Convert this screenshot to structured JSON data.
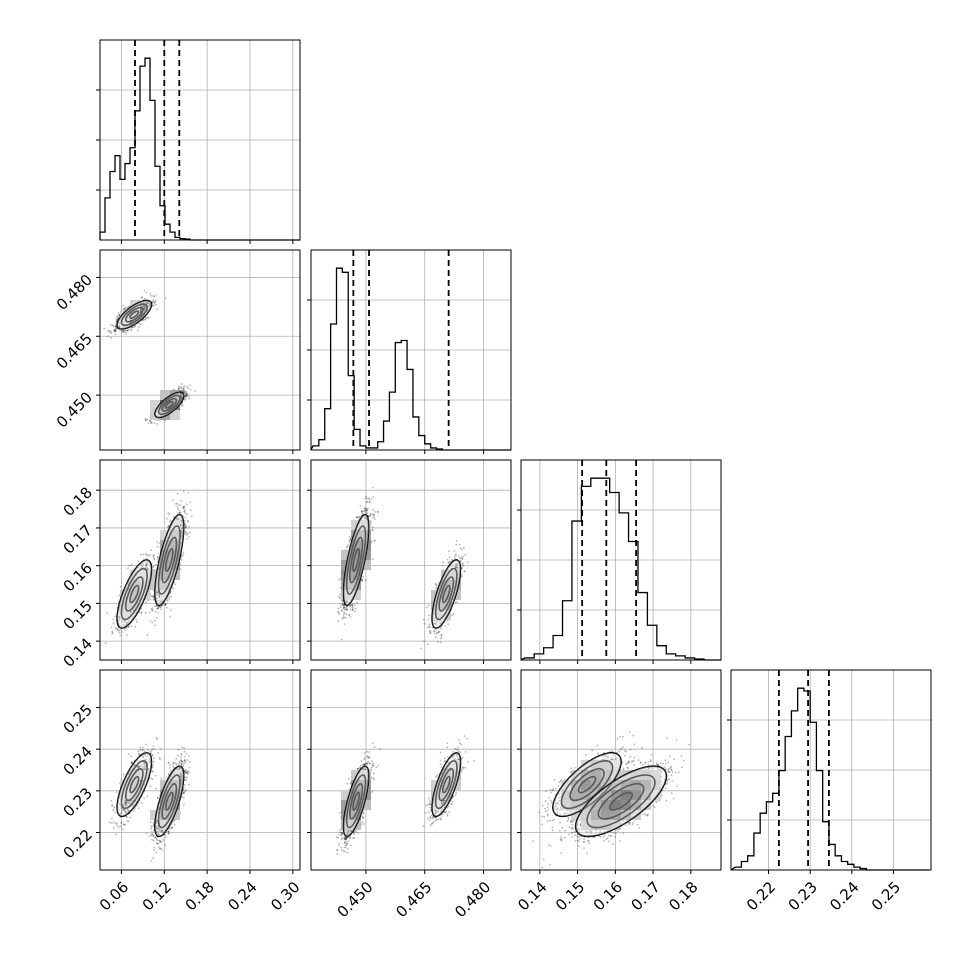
{
  "chart_data": {
    "type": "corner",
    "title": "",
    "grid": true,
    "parameters": [
      {
        "range": [
          0.03,
          0.31
        ],
        "ticks": [
          0.06,
          0.12,
          0.18,
          0.24,
          0.3
        ],
        "tick_labels": [
          "0.06",
          "0.12",
          "0.18",
          "0.24",
          "0.30"
        ],
        "quantiles": [
          0.079,
          0.12,
          0.141
        ]
      },
      {
        "range": [
          0.436,
          0.487
        ],
        "ticks": [
          0.45,
          0.465,
          0.48
        ],
        "tick_labels": [
          "0.450",
          "0.465",
          "0.480"
        ],
        "quantiles": [
          0.4468,
          0.4508,
          0.4711
        ]
      },
      {
        "range": [
          0.135,
          0.188
        ],
        "ticks": [
          0.14,
          0.15,
          0.16,
          0.17,
          0.18
        ],
        "tick_labels": [
          "0.14",
          "0.15",
          "0.16",
          "0.17",
          "0.18"
        ],
        "quantiles": [
          0.1512,
          0.1576,
          0.1655
        ]
      },
      {
        "range": [
          0.211,
          0.259
        ],
        "ticks": [
          0.22,
          0.23,
          0.24,
          0.25
        ],
        "tick_labels": [
          "0.22",
          "0.23",
          "0.24",
          "0.25"
        ],
        "quantiles": [
          0.2225,
          0.2295,
          0.2345
        ]
      }
    ],
    "marginals": [
      {
        "bin_start": 0.03,
        "bin_width": 0.007,
        "counts": [
          0.03,
          0.16,
          0.26,
          0.32,
          0.23,
          0.29,
          0.35,
          0.49,
          0.66,
          0.69,
          0.53,
          0.28,
          0.13,
          0.06,
          0.03,
          0.01,
          0.005,
          0.003,
          0,
          0,
          0,
          0,
          0,
          0,
          0,
          0,
          0,
          0,
          0,
          0,
          0,
          0,
          0,
          0,
          0,
          0,
          0,
          0,
          0,
          0
        ]
      },
      {
        "bin_start": 0.4365,
        "bin_width": 0.0015,
        "counts": [
          0.02,
          0.05,
          0.2,
          0.61,
          0.88,
          0.86,
          0.36,
          0.1,
          0.02,
          0.01,
          0.01,
          0.04,
          0.14,
          0.28,
          0.52,
          0.53,
          0.39,
          0.16,
          0.07,
          0.03,
          0.01,
          0.005,
          0,
          0,
          0,
          0,
          0,
          0,
          0,
          0,
          0,
          0,
          0,
          0
        ]
      },
      {
        "bin_start": 0.136,
        "bin_width": 0.0025,
        "counts": [
          0.01,
          0.03,
          0.06,
          0.12,
          0.29,
          0.68,
          0.85,
          0.89,
          0.89,
          0.82,
          0.72,
          0.58,
          0.33,
          0.17,
          0.07,
          0.03,
          0.02,
          0.01,
          0.005,
          0,
          0
        ]
      },
      {
        "bin_start": 0.212,
        "bin_width": 0.0015,
        "counts": [
          0.01,
          0.03,
          0.05,
          0.13,
          0.2,
          0.24,
          0.27,
          0.35,
          0.47,
          0.56,
          0.64,
          0.63,
          0.52,
          0.35,
          0.17,
          0.09,
          0.05,
          0.03,
          0.02,
          0.01,
          0.005,
          0,
          0,
          0,
          0,
          0,
          0,
          0,
          0,
          0,
          0
        ]
      }
    ],
    "modes": [
      {
        "weight": 0.35,
        "mean": [
          0.078,
          0.4705,
          0.1525,
          0.2315
        ],
        "sd": [
          0.012,
          0.0018,
          0.0045,
          0.0038
        ]
      },
      {
        "weight": 0.65,
        "mean": [
          0.127,
          0.4475,
          0.1615,
          0.2275
        ],
        "sd": [
          0.01,
          0.0016,
          0.006,
          0.0042
        ]
      }
    ],
    "points_per_panel": 2600
  }
}
